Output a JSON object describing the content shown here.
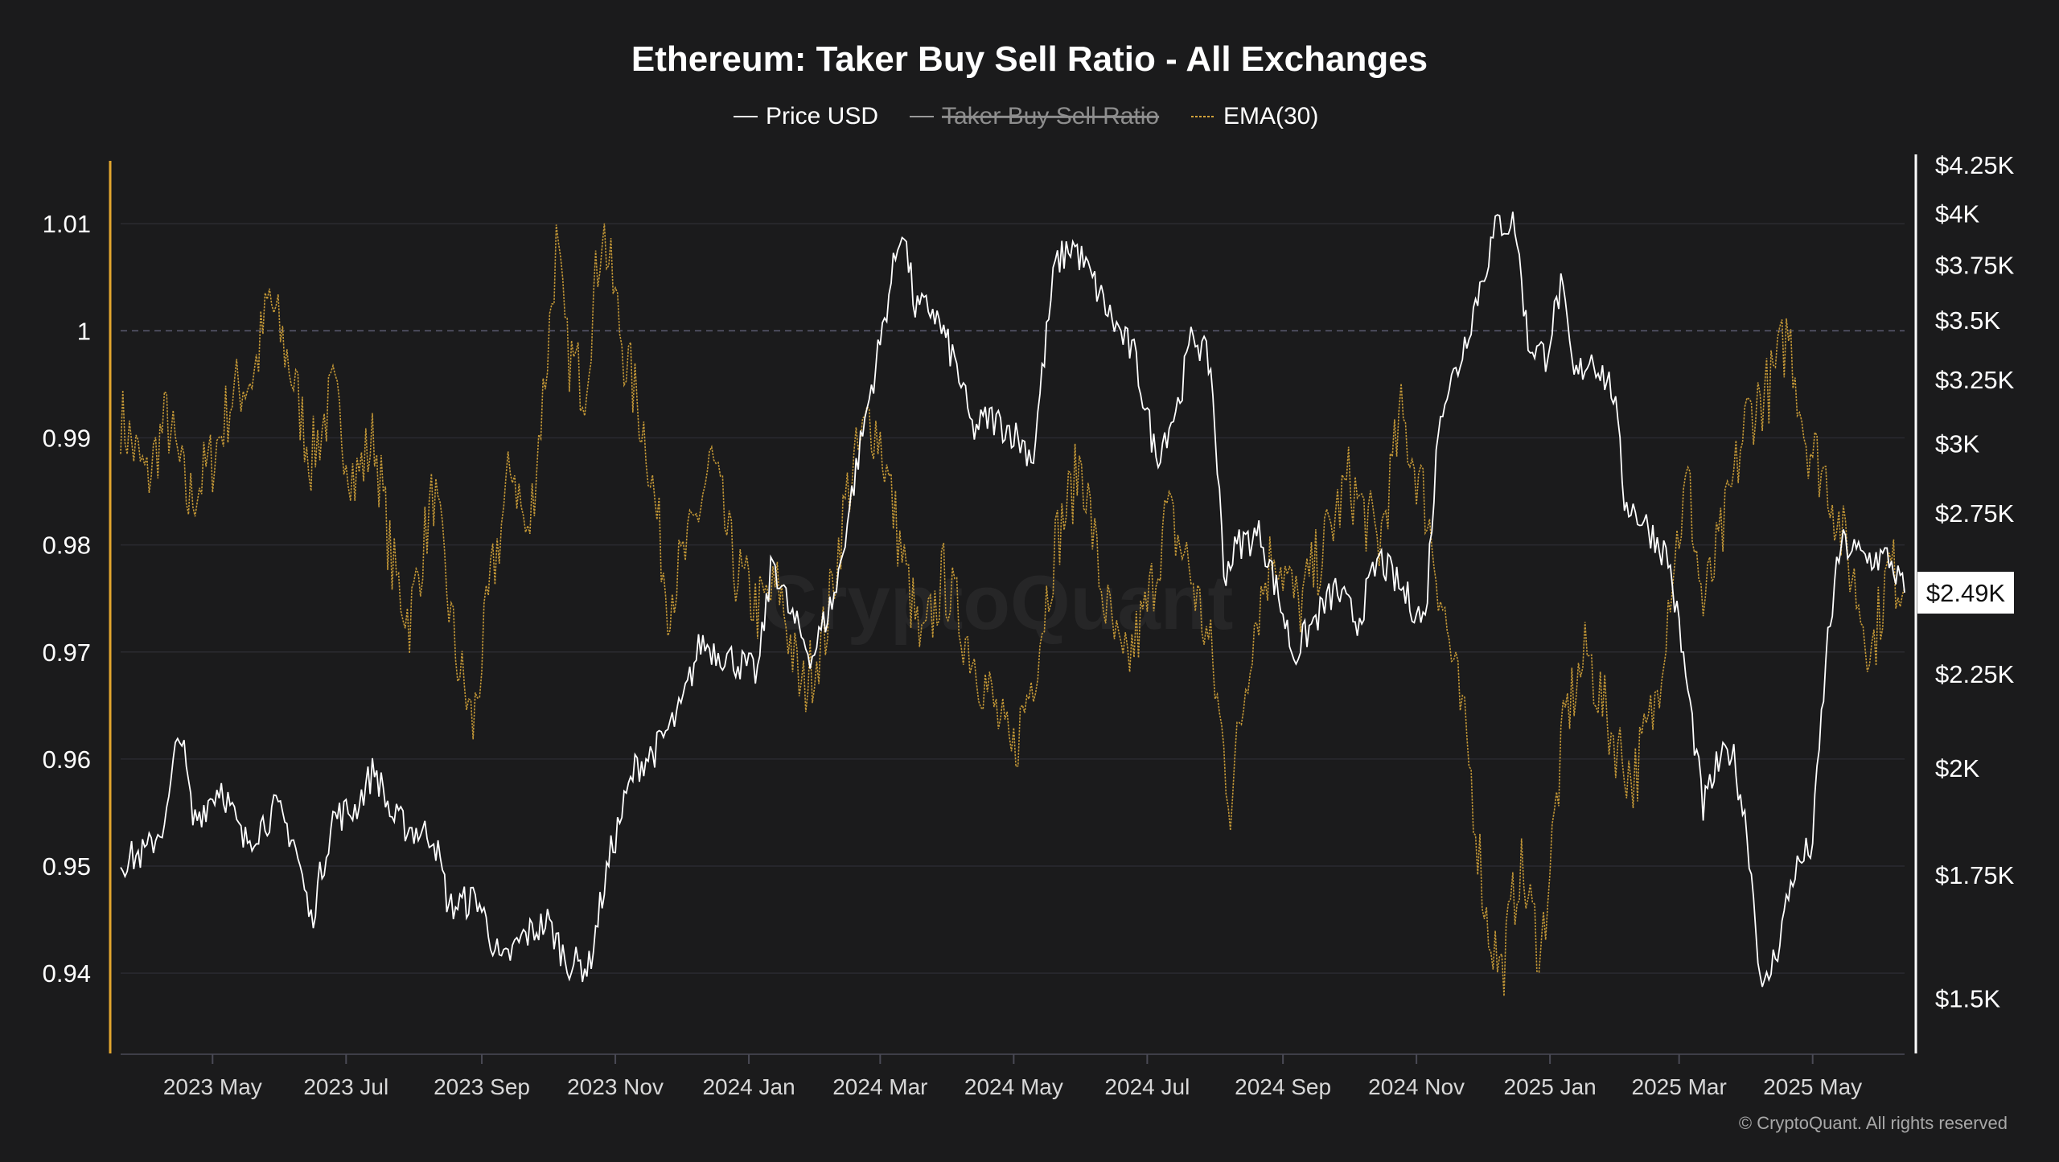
{
  "chart_data": {
    "type": "line",
    "title": "Ethereum: Taker Buy Sell Ratio - All Exchanges",
    "legend": {
      "placement": "top-center",
      "items": [
        {
          "label": "Price USD",
          "color": "#ffffff",
          "style": "solid",
          "hidden": false
        },
        {
          "label": "Taker Buy Sell Ratio",
          "color": "#9a9a9a",
          "style": "solid",
          "hidden": true
        },
        {
          "label": "EMA(30)",
          "color": "#d6a53a",
          "style": "dotted",
          "hidden": false
        }
      ]
    },
    "x_ticks": [
      "2023 May",
      "2023 Jul",
      "2023 Sep",
      "2023 Nov",
      "2024 Jan",
      "2024 Mar",
      "2024 May",
      "2024 Jul",
      "2024 Sep",
      "2024 Nov",
      "2025 Jan",
      "2025 Mar",
      "2025 May"
    ],
    "x_range": [
      "2023-03-20",
      "2025-06-12"
    ],
    "y_left": {
      "ticks": [
        "1.01",
        "1",
        "0.99",
        "0.98",
        "0.97",
        "0.96",
        "0.95",
        "0.94"
      ],
      "range": [
        0.9325,
        1.0155
      ],
      "reference_line": 1.0,
      "axis_color": "#e3a72f"
    },
    "y_right": {
      "scale": "log",
      "ticks": [
        "$4.25K",
        "$4K",
        "$3.75K",
        "$3.5K",
        "$3.25K",
        "$3K",
        "$2.75K",
        "$2.5K",
        "$2.25K",
        "$2K",
        "$1.75K",
        "$1.5K"
      ],
      "tick_values": [
        4250,
        4000,
        3750,
        3500,
        3250,
        3000,
        2750,
        2500,
        2250,
        2000,
        1750,
        1500
      ],
      "range": [
        1400,
        4250
      ],
      "current_value_label": "$2.49K",
      "current_value": 2490,
      "axis_color": "#ffffff"
    },
    "grid": true,
    "series": [
      {
        "name": "Price USD",
        "axis": "right",
        "color": "#ffffff",
        "points": [
          [
            "2023-03-20",
            1780
          ],
          [
            "2023-04-01",
            1800
          ],
          [
            "2023-04-10",
            1880
          ],
          [
            "2023-04-16",
            2110
          ],
          [
            "2023-04-22",
            1870
          ],
          [
            "2023-05-05",
            1960
          ],
          [
            "2023-05-15",
            1820
          ],
          [
            "2023-05-30",
            1900
          ],
          [
            "2023-06-07",
            1830
          ],
          [
            "2023-06-15",
            1650
          ],
          [
            "2023-06-25",
            1880
          ],
          [
            "2023-07-05",
            1900
          ],
          [
            "2023-07-14",
            2000
          ],
          [
            "2023-07-22",
            1880
          ],
          [
            "2023-08-01",
            1850
          ],
          [
            "2023-08-10",
            1840
          ],
          [
            "2023-08-17",
            1680
          ],
          [
            "2023-08-30",
            1700
          ],
          [
            "2023-09-10",
            1560
          ],
          [
            "2023-09-20",
            1620
          ],
          [
            "2023-10-01",
            1650
          ],
          [
            "2023-10-10",
            1570
          ],
          [
            "2023-10-20",
            1560
          ],
          [
            "2023-10-30",
            1800
          ],
          [
            "2023-11-10",
            2000
          ],
          [
            "2023-11-20",
            2050
          ],
          [
            "2023-12-01",
            2150
          ],
          [
            "2023-12-10",
            2340
          ],
          [
            "2023-12-22",
            2300
          ],
          [
            "2024-01-05",
            2250
          ],
          [
            "2024-01-12",
            2600
          ],
          [
            "2024-01-20",
            2420
          ],
          [
            "2024-01-30",
            2300
          ],
          [
            "2024-02-10",
            2500
          ],
          [
            "2024-02-20",
            2950
          ],
          [
            "2024-03-01",
            3400
          ],
          [
            "2024-03-11",
            3950
          ],
          [
            "2024-03-17",
            3550
          ],
          [
            "2024-03-25",
            3550
          ],
          [
            "2024-04-05",
            3300
          ],
          [
            "2024-04-12",
            3050
          ],
          [
            "2024-04-20",
            3100
          ],
          [
            "2024-04-30",
            3050
          ],
          [
            "2024-05-10",
            2950
          ],
          [
            "2024-05-20",
            3750
          ],
          [
            "2024-05-28",
            3850
          ],
          [
            "2024-06-05",
            3700
          ],
          [
            "2024-06-15",
            3500
          ],
          [
            "2024-06-25",
            3350
          ],
          [
            "2024-07-05",
            2950
          ],
          [
            "2024-07-15",
            3150
          ],
          [
            "2024-07-22",
            3450
          ],
          [
            "2024-07-30",
            3300
          ],
          [
            "2024-08-05",
            2550
          ],
          [
            "2024-08-12",
            2650
          ],
          [
            "2024-08-22",
            2680
          ],
          [
            "2024-09-06",
            2300
          ],
          [
            "2024-09-15",
            2400
          ],
          [
            "2024-09-25",
            2500
          ],
          [
            "2024-10-05",
            2400
          ],
          [
            "2024-10-15",
            2600
          ],
          [
            "2024-10-25",
            2500
          ],
          [
            "2024-11-05",
            2400
          ],
          [
            "2024-11-12",
            3150
          ],
          [
            "2024-11-20",
            3300
          ],
          [
            "2024-11-30",
            3650
          ],
          [
            "2024-12-08",
            3950
          ],
          [
            "2024-12-16",
            3950
          ],
          [
            "2024-12-22",
            3400
          ],
          [
            "2024-12-30",
            3350
          ],
          [
            "2025-01-06",
            3650
          ],
          [
            "2025-01-12",
            3250
          ],
          [
            "2025-01-20",
            3350
          ],
          [
            "2025-01-30",
            3200
          ],
          [
            "2025-02-04",
            2800
          ],
          [
            "2025-02-15",
            2700
          ],
          [
            "2025-02-24",
            2600
          ],
          [
            "2025-03-05",
            2200
          ],
          [
            "2025-03-12",
            1900
          ],
          [
            "2025-03-18",
            2000
          ],
          [
            "2025-03-25",
            2050
          ],
          [
            "2025-04-01",
            1850
          ],
          [
            "2025-04-08",
            1500
          ],
          [
            "2025-04-15",
            1600
          ],
          [
            "2025-04-22",
            1750
          ],
          [
            "2025-05-01",
            1820
          ],
          [
            "2025-05-08",
            2350
          ],
          [
            "2025-05-14",
            2650
          ],
          [
            "2025-05-25",
            2600
          ],
          [
            "2025-06-05",
            2600
          ],
          [
            "2025-06-12",
            2490
          ]
        ]
      },
      {
        "name": "EMA(30)",
        "axis": "left",
        "color": "#d6a53a",
        "points": [
          [
            "2023-03-20",
            0.992
          ],
          [
            "2023-04-01",
            0.986
          ],
          [
            "2023-04-10",
            0.992
          ],
          [
            "2023-04-20",
            0.984
          ],
          [
            "2023-05-01",
            0.988
          ],
          [
            "2023-05-10",
            0.994
          ],
          [
            "2023-05-20",
            0.996
          ],
          [
            "2023-05-27",
            1.003
          ],
          [
            "2023-06-05",
            0.997
          ],
          [
            "2023-06-15",
            0.988
          ],
          [
            "2023-06-25",
            0.994
          ],
          [
            "2023-07-05",
            0.986
          ],
          [
            "2023-07-14",
            0.99
          ],
          [
            "2023-07-22",
            0.978
          ],
          [
            "2023-07-30",
            0.973
          ],
          [
            "2023-08-10",
            0.985
          ],
          [
            "2023-08-20",
            0.97
          ],
          [
            "2023-08-28",
            0.963
          ],
          [
            "2023-09-05",
            0.976
          ],
          [
            "2023-09-15",
            0.988
          ],
          [
            "2023-09-22",
            0.98
          ],
          [
            "2023-10-01",
            0.998
          ],
          [
            "2023-10-05",
            1.008
          ],
          [
            "2023-10-10",
            0.998
          ],
          [
            "2023-10-18",
            0.995
          ],
          [
            "2023-10-26",
            1.01
          ],
          [
            "2023-11-05",
            0.998
          ],
          [
            "2023-11-15",
            0.99
          ],
          [
            "2023-11-25",
            0.975
          ],
          [
            "2023-12-05",
            0.98
          ],
          [
            "2023-12-15",
            0.988
          ],
          [
            "2023-12-25",
            0.978
          ],
          [
            "2024-01-05",
            0.974
          ],
          [
            "2024-01-15",
            0.976
          ],
          [
            "2024-01-25",
            0.966
          ],
          [
            "2024-02-05",
            0.972
          ],
          [
            "2024-02-15",
            0.985
          ],
          [
            "2024-02-25",
            0.992
          ],
          [
            "2024-03-01",
            0.99
          ],
          [
            "2024-03-10",
            0.98
          ],
          [
            "2024-03-20",
            0.97
          ],
          [
            "2024-03-30",
            0.977
          ],
          [
            "2024-04-10",
            0.971
          ],
          [
            "2024-04-20",
            0.966
          ],
          [
            "2024-04-30",
            0.96
          ],
          [
            "2024-05-10",
            0.968
          ],
          [
            "2024-05-20",
            0.98
          ],
          [
            "2024-06-01",
            0.988
          ],
          [
            "2024-06-10",
            0.976
          ],
          [
            "2024-06-20",
            0.968
          ],
          [
            "2024-07-01",
            0.974
          ],
          [
            "2024-07-10",
            0.983
          ],
          [
            "2024-07-20",
            0.978
          ],
          [
            "2024-07-30",
            0.97
          ],
          [
            "2024-08-08",
            0.956
          ],
          [
            "2024-08-18",
            0.972
          ],
          [
            "2024-08-28",
            0.98
          ],
          [
            "2024-09-08",
            0.974
          ],
          [
            "2024-09-20",
            0.98
          ],
          [
            "2024-10-01",
            0.986
          ],
          [
            "2024-10-15",
            0.98
          ],
          [
            "2024-10-25",
            0.992
          ],
          [
            "2024-11-05",
            0.984
          ],
          [
            "2024-11-15",
            0.972
          ],
          [
            "2024-11-25",
            0.96
          ],
          [
            "2024-12-03",
            0.945
          ],
          [
            "2024-12-10",
            0.94
          ],
          [
            "2024-12-18",
            0.95
          ],
          [
            "2024-12-28",
            0.942
          ],
          [
            "2025-01-08",
            0.964
          ],
          [
            "2025-01-18",
            0.97
          ],
          [
            "2025-01-28",
            0.963
          ],
          [
            "2025-02-08",
            0.958
          ],
          [
            "2025-02-18",
            0.965
          ],
          [
            "2025-02-26",
            0.978
          ],
          [
            "2025-03-05",
            0.986
          ],
          [
            "2025-03-12",
            0.974
          ],
          [
            "2025-03-22",
            0.982
          ],
          [
            "2025-04-01",
            0.992
          ],
          [
            "2025-04-12",
            0.995
          ],
          [
            "2025-04-20",
            1.0
          ],
          [
            "2025-04-28",
            0.99
          ],
          [
            "2025-05-08",
            0.986
          ],
          [
            "2025-05-18",
            0.978
          ],
          [
            "2025-05-28",
            0.97
          ],
          [
            "2025-06-05",
            0.978
          ],
          [
            "2025-06-12",
            0.976
          ]
        ]
      }
    ],
    "watermark": "CryptoQuant",
    "copyright": "© CryptoQuant. All rights reserved"
  }
}
